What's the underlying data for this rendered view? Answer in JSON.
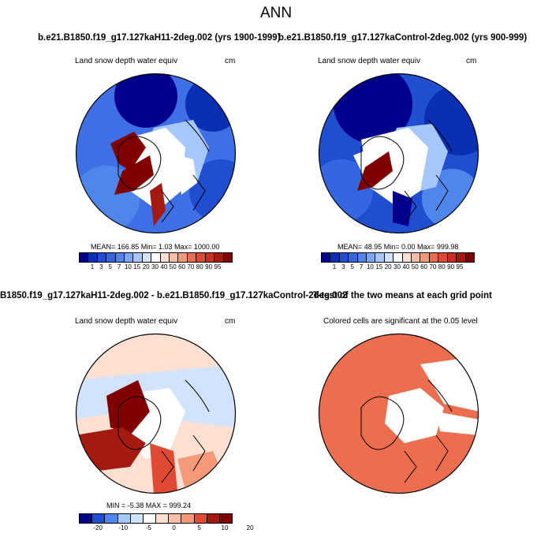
{
  "page": {
    "title": "ANN",
    "panel_a_title": "b.e21.B1850.f19_g17.127kaH11-2deg.002 (yrs 1900-1999)",
    "panel_b_title": "b.e21.B1850.f19_g17.127kaControl-2deg.002 (yrs 900-999)",
    "panel_c_title": "B1850.f19_g17.127kaH11-2deg.002 - b.e21.B1850.f19_g17.127kaControl-2deg.002",
    "panel_d_title": "T-test of the two means at each grid point"
  },
  "chart_data": [
    {
      "type": "heatmap",
      "subtitle_left": "Land snow depth water equiv",
      "units": "cm",
      "stats": "MEAN= 166.85  Min=   1.03  Max= 1000.00",
      "colorbar_ticks": [
        "1",
        "3",
        "5",
        "7",
        "10",
        "15",
        "20",
        "30",
        "40",
        "50",
        "60",
        "70",
        "80",
        "90",
        "95"
      ],
      "colorbar_colors": [
        "#00008c",
        "#0a2fb4",
        "#1f4fd0",
        "#3366e0",
        "#4f86ec",
        "#79a6f5",
        "#a6c7fb",
        "#d2e3fd",
        "#ffffff",
        "#fde0d2",
        "#fbbfa6",
        "#f59a79",
        "#ec6e4f",
        "#e04a33",
        "#c8301f",
        "#a41a10",
        "#800000"
      ]
    },
    {
      "type": "heatmap",
      "subtitle_left": "Land snow depth water equiv",
      "units": "cm",
      "stats": "MEAN=  48.95  Min=   0.00  Max= 999.98",
      "colorbar_ticks": [
        "1",
        "3",
        "5",
        "7",
        "10",
        "15",
        "20",
        "30",
        "40",
        "50",
        "60",
        "70",
        "80",
        "90",
        "95"
      ],
      "colorbar_colors": [
        "#00008c",
        "#0a2fb4",
        "#1f4fd0",
        "#3366e0",
        "#4f86ec",
        "#79a6f5",
        "#a6c7fb",
        "#d2e3fd",
        "#ffffff",
        "#fde0d2",
        "#fbbfa6",
        "#f59a79",
        "#ec6e4f",
        "#e04a33",
        "#c8301f",
        "#a41a10",
        "#800000"
      ]
    },
    {
      "type": "heatmap",
      "subtitle_left": "Land snow depth water equiv",
      "units": "cm",
      "stats": "MIN =  -5.38  MAX = 999.24",
      "colorbar_ticks": [
        "-20",
        "-10",
        "-5",
        "0",
        "5",
        "10",
        "20"
      ],
      "colorbar_colors": [
        "#00008c",
        "#1f4fd0",
        "#4f86ec",
        "#a6c7fb",
        "#d2e3fd",
        "#ffffff",
        "#fde0d2",
        "#fbbfa6",
        "#f59a79",
        "#e04a33",
        "#a41a10",
        "#800000"
      ]
    },
    {
      "type": "heatmap",
      "subtitle_left": "Colored cells are significant at the 0.05 level"
    }
  ]
}
